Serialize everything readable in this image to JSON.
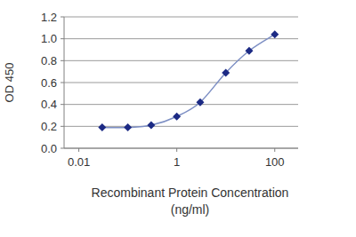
{
  "chart_data": {
    "type": "line",
    "x_label": "Recombinant Protein Concentration (ng/ml)",
    "y_label": "OD 450",
    "x": [
      0.03,
      0.1,
      0.3,
      1,
      3,
      10,
      30,
      100
    ],
    "values": [
      0.19,
      0.19,
      0.21,
      0.29,
      0.42,
      0.69,
      0.89,
      1.04
    ],
    "color": "#1c2a84",
    "marker": "diamond",
    "line_style": "solid",
    "log": "x",
    "xlim": [
      0.005,
      300
    ],
    "xticks": [
      0.01,
      1,
      100
    ],
    "ylim": [
      0,
      1.2
    ],
    "yticks": [
      {
        "value": 0,
        "label": "0.0"
      },
      0.2,
      0.4,
      0.6,
      0.8,
      {
        "value": 1,
        "label": "1.0"
      },
      1.2
    ],
    "grid": true
  }
}
